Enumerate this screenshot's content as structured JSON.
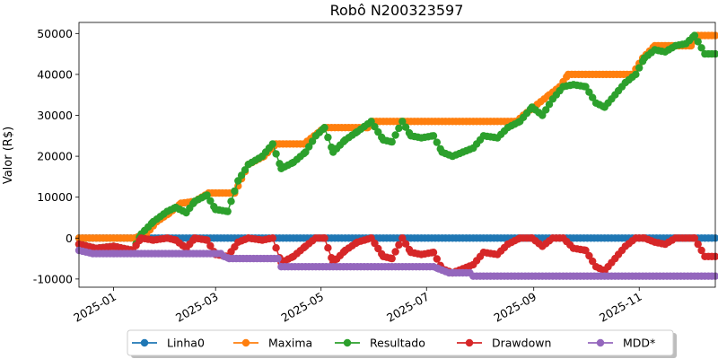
{
  "chart_data": {
    "type": "line",
    "title": "Robô N200323597",
    "ylabel": "Valor (R$)",
    "xlabel": "",
    "x_axis": "date",
    "xlim": [
      "2024-12-12",
      "2025-12-15"
    ],
    "ylim": [
      -12000,
      52700
    ],
    "x_ticks": [
      "2025-01",
      "2025-03",
      "2025-05",
      "2025-07",
      "2025-09",
      "2025-11"
    ],
    "y_ticks": [
      -10000,
      0,
      10000,
      20000,
      30000,
      40000,
      50000
    ],
    "grid": false,
    "legend_position": "bottom-center",
    "series": [
      {
        "name": "Linha0",
        "color": "#1f77b4",
        "points": [
          [
            "2024-12-12",
            0
          ],
          [
            "2025-12-15",
            0
          ]
        ]
      },
      {
        "name": "Maxima",
        "color": "#ff7f0e",
        "points": [
          [
            "2024-12-12",
            0
          ],
          [
            "2025-01-13",
            0
          ],
          [
            "2025-01-20",
            1000
          ],
          [
            "2025-01-26",
            4000
          ],
          [
            "2025-02-02",
            6000
          ],
          [
            "2025-02-09",
            8500
          ],
          [
            "2025-02-17",
            9000
          ],
          [
            "2025-02-25",
            11000
          ],
          [
            "2025-03-12",
            11000
          ],
          [
            "2025-03-20",
            18000
          ],
          [
            "2025-03-29",
            20000
          ],
          [
            "2025-04-05",
            23000
          ],
          [
            "2025-04-21",
            23000
          ],
          [
            "2025-04-27",
            25000
          ],
          [
            "2025-05-03",
            27000
          ],
          [
            "2025-05-28",
            27000
          ],
          [
            "2025-05-31",
            28500
          ],
          [
            "2025-08-22",
            28500
          ],
          [
            "2025-08-26",
            30000
          ],
          [
            "2025-09-01",
            32000
          ],
          [
            "2025-09-10",
            35000
          ],
          [
            "2025-09-16",
            37000
          ],
          [
            "2025-09-21",
            40000
          ],
          [
            "2025-10-28",
            40000
          ],
          [
            "2025-11-03",
            44000
          ],
          [
            "2025-11-10",
            47000
          ],
          [
            "2025-12-01",
            47000
          ],
          [
            "2025-12-05",
            49500
          ],
          [
            "2025-12-15",
            49500
          ]
        ]
      },
      {
        "name": "Resultado",
        "color": "#2ca02c",
        "points": [
          [
            "2024-12-12",
            -1500
          ],
          [
            "2024-12-22",
            -2500
          ],
          [
            "2025-01-01",
            -2000
          ],
          [
            "2025-01-12",
            -3000
          ],
          [
            "2025-01-17",
            1000
          ],
          [
            "2025-01-24",
            4000
          ],
          [
            "2025-02-01",
            6500
          ],
          [
            "2025-02-06",
            7500
          ],
          [
            "2025-02-12",
            6200
          ],
          [
            "2025-02-17",
            9000
          ],
          [
            "2025-02-24",
            10500
          ],
          [
            "2025-03-01",
            7000
          ],
          [
            "2025-03-08",
            6500
          ],
          [
            "2025-03-14",
            14000
          ],
          [
            "2025-03-20",
            18000
          ],
          [
            "2025-03-28",
            20000
          ],
          [
            "2025-04-03",
            23000
          ],
          [
            "2025-04-08",
            17000
          ],
          [
            "2025-04-15",
            18500
          ],
          [
            "2025-04-22",
            21000
          ],
          [
            "2025-04-28",
            25000
          ],
          [
            "2025-05-03",
            27000
          ],
          [
            "2025-05-08",
            21000
          ],
          [
            "2025-05-15",
            24000
          ],
          [
            "2025-05-22",
            26000
          ],
          [
            "2025-05-30",
            28500
          ],
          [
            "2025-06-06",
            24000
          ],
          [
            "2025-06-11",
            23500
          ],
          [
            "2025-06-17",
            28500
          ],
          [
            "2025-06-22",
            25000
          ],
          [
            "2025-06-28",
            24500
          ],
          [
            "2025-07-05",
            25000
          ],
          [
            "2025-07-10",
            21000
          ],
          [
            "2025-07-16",
            20000
          ],
          [
            "2025-07-22",
            21000
          ],
          [
            "2025-07-28",
            22000
          ],
          [
            "2025-08-03",
            25000
          ],
          [
            "2025-08-11",
            24500
          ],
          [
            "2025-08-17",
            27000
          ],
          [
            "2025-08-24",
            28500
          ],
          [
            "2025-08-31",
            32000
          ],
          [
            "2025-09-06",
            30000
          ],
          [
            "2025-09-12",
            34000
          ],
          [
            "2025-09-18",
            37000
          ],
          [
            "2025-09-24",
            37500
          ],
          [
            "2025-10-01",
            37000
          ],
          [
            "2025-10-07",
            33000
          ],
          [
            "2025-10-12",
            32000
          ],
          [
            "2025-10-18",
            35000
          ],
          [
            "2025-10-24",
            38000
          ],
          [
            "2025-10-30",
            40000
          ],
          [
            "2025-11-04",
            44000
          ],
          [
            "2025-11-10",
            46000
          ],
          [
            "2025-11-16",
            45500
          ],
          [
            "2025-11-22",
            47000
          ],
          [
            "2025-11-28",
            47500
          ],
          [
            "2025-12-03",
            49500
          ],
          [
            "2025-12-09",
            45000
          ],
          [
            "2025-12-15",
            45000
          ]
        ]
      },
      {
        "name": "Drawdown",
        "color": "#d62728",
        "points": [
          [
            "2024-12-12",
            -1500
          ],
          [
            "2024-12-22",
            -2500
          ],
          [
            "2025-01-01",
            -2000
          ],
          [
            "2025-01-12",
            -3000
          ],
          [
            "2025-01-17",
            0
          ],
          [
            "2025-01-24",
            -500
          ],
          [
            "2025-02-01",
            0
          ],
          [
            "2025-02-06",
            -500
          ],
          [
            "2025-02-12",
            -2500
          ],
          [
            "2025-02-17",
            0
          ],
          [
            "2025-02-24",
            -500
          ],
          [
            "2025-03-01",
            -4000
          ],
          [
            "2025-03-08",
            -4500
          ],
          [
            "2025-03-14",
            -1000
          ],
          [
            "2025-03-20",
            0
          ],
          [
            "2025-03-28",
            -500
          ],
          [
            "2025-04-03",
            0
          ],
          [
            "2025-04-08",
            -6000
          ],
          [
            "2025-04-15",
            -4500
          ],
          [
            "2025-04-22",
            -2000
          ],
          [
            "2025-04-28",
            0
          ],
          [
            "2025-05-03",
            0
          ],
          [
            "2025-05-08",
            -6000
          ],
          [
            "2025-05-15",
            -3000
          ],
          [
            "2025-05-22",
            -1000
          ],
          [
            "2025-05-30",
            0
          ],
          [
            "2025-06-06",
            -4500
          ],
          [
            "2025-06-11",
            -5000
          ],
          [
            "2025-06-17",
            0
          ],
          [
            "2025-06-22",
            -3500
          ],
          [
            "2025-06-28",
            -4000
          ],
          [
            "2025-07-05",
            -3500
          ],
          [
            "2025-07-10",
            -7500
          ],
          [
            "2025-07-16",
            -8500
          ],
          [
            "2025-07-22",
            -7500
          ],
          [
            "2025-07-28",
            -6500
          ],
          [
            "2025-08-03",
            -3500
          ],
          [
            "2025-08-11",
            -4000
          ],
          [
            "2025-08-17",
            -1500
          ],
          [
            "2025-08-24",
            0
          ],
          [
            "2025-08-31",
            0
          ],
          [
            "2025-09-06",
            -2000
          ],
          [
            "2025-09-12",
            0
          ],
          [
            "2025-09-18",
            0
          ],
          [
            "2025-09-24",
            -2500
          ],
          [
            "2025-10-01",
            -3000
          ],
          [
            "2025-10-07",
            -7000
          ],
          [
            "2025-10-12",
            -8000
          ],
          [
            "2025-10-18",
            -5000
          ],
          [
            "2025-10-24",
            -2000
          ],
          [
            "2025-10-30",
            0
          ],
          [
            "2025-11-04",
            0
          ],
          [
            "2025-11-10",
            -1000
          ],
          [
            "2025-11-16",
            -1500
          ],
          [
            "2025-11-22",
            0
          ],
          [
            "2025-11-28",
            0
          ],
          [
            "2025-12-03",
            0
          ],
          [
            "2025-12-09",
            -4500
          ],
          [
            "2025-12-15",
            -4500
          ]
        ]
      },
      {
        "name": "MDD*",
        "color": "#9467bd",
        "points": [
          [
            "2024-12-12",
            -3000
          ],
          [
            "2024-12-20",
            -3800
          ],
          [
            "2025-03-04",
            -3800
          ],
          [
            "2025-03-06",
            -4500
          ],
          [
            "2025-03-09",
            -5000
          ],
          [
            "2025-04-06",
            -5000
          ],
          [
            "2025-04-08",
            -7000
          ],
          [
            "2025-07-05",
            -7000
          ],
          [
            "2025-07-08",
            -7500
          ],
          [
            "2025-07-14",
            -8500
          ],
          [
            "2025-07-26",
            -8500
          ],
          [
            "2025-07-28",
            -9300
          ],
          [
            "2025-12-15",
            -9300
          ]
        ]
      }
    ]
  }
}
